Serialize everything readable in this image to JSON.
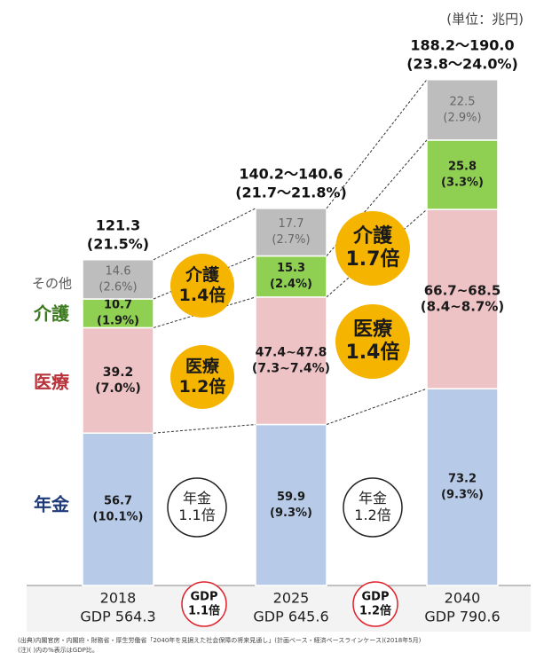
{
  "chart_data": {
    "type": "stacked_bar",
    "unit": "(単位：兆円)",
    "categories": [
      "2018",
      "2025",
      "2040"
    ],
    "gdp_labels": [
      "GDP 564.3",
      "GDP 645.6",
      "GDP 790.6"
    ],
    "series": [
      {
        "name": "年金",
        "color": "#b7cbe8",
        "name_color": "#1f3a78",
        "values": [
          56.7,
          59.9,
          73.2
        ],
        "share_labels": [
          "(10.1%)",
          "(9.3%)",
          "(9.3%)"
        ]
      },
      {
        "name": "医療",
        "color": "#eec3c6",
        "name_color": "#b8323a",
        "values": [
          39.2,
          47.4,
          66.7
        ],
        "value_labels": [
          "39.2",
          "47.4~47.8",
          "66.7~68.5"
        ],
        "share_labels": [
          "(7.0%)",
          "(7.3~7.4%)",
          "(8.4~8.7%)"
        ]
      },
      {
        "name": "介護",
        "color": "#8fd052",
        "name_color": "#3c7a1e",
        "values": [
          10.7,
          15.3,
          25.8
        ],
        "share_labels": [
          "(1.9%)",
          "(2.4%)",
          "(3.3%)"
        ]
      },
      {
        "name": "その他",
        "color": "#bdbdbd",
        "name_color": "#555555",
        "values": [
          14.6,
          17.7,
          22.5
        ],
        "share_labels": [
          "(2.6%)",
          "(2.7%)",
          "(2.9%)"
        ]
      }
    ],
    "total_labels": [
      "121.3",
      "140.2～140.6",
      "188.2～190.0"
    ],
    "total_share_labels": [
      "(21.5%)",
      "(21.7～21.8%)",
      "(23.8～24.0%)"
    ],
    "annotations": [
      {
        "kind": "orange",
        "lines": [
          "介護",
          "1.4倍"
        ]
      },
      {
        "kind": "orange",
        "lines": [
          "医療",
          "1.2倍"
        ]
      },
      {
        "kind": "orange",
        "lines": [
          "介護",
          "1.7倍"
        ]
      },
      {
        "kind": "orange",
        "lines": [
          "医療",
          "1.4倍"
        ]
      },
      {
        "kind": "white",
        "lines": [
          "年金",
          "1.1倍"
        ]
      },
      {
        "kind": "white",
        "lines": [
          "年金",
          "1.2倍"
        ]
      },
      {
        "kind": "gdp",
        "lines": [
          "GDP",
          "1.1倍"
        ]
      },
      {
        "kind": "gdp",
        "lines": [
          "GDP",
          "1.2倍"
        ]
      }
    ],
    "notes": [
      "(出典)内閣官房・内閣府・財務省・厚生労働省「2040年を見据えた社会保障の将来見通し」(計画ベース・経済ベースラインケース)(2018年5月)",
      "(注)( )内の%表示はGDP比。"
    ]
  }
}
